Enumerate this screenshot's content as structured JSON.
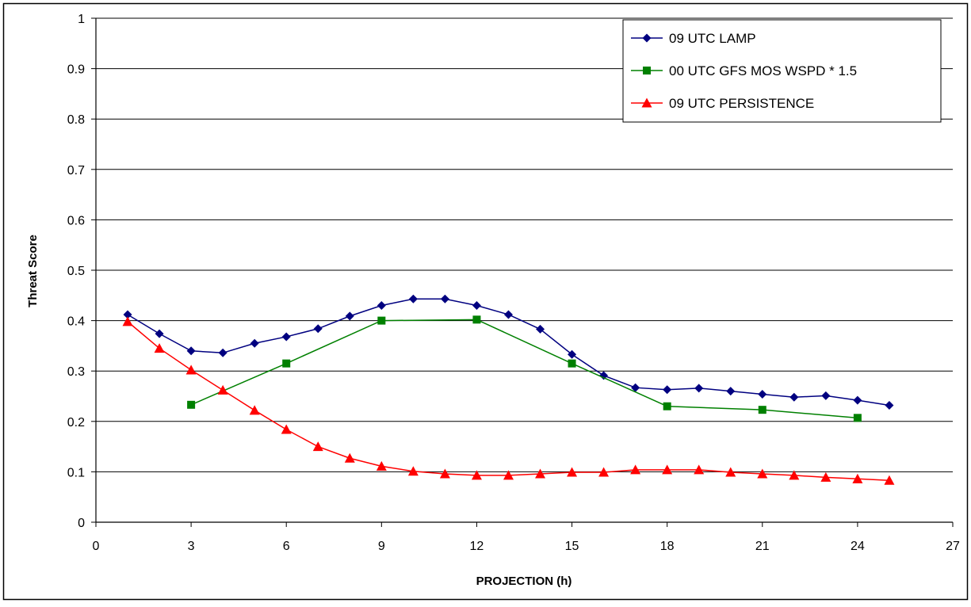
{
  "chart_data": {
    "type": "line",
    "title": "",
    "xlabel": "PROJECTION (h)",
    "ylabel": "Threat Score",
    "xlim": [
      0,
      27
    ],
    "ylim": [
      0,
      1
    ],
    "xticks": [
      0,
      3,
      6,
      9,
      12,
      15,
      18,
      21,
      24,
      27
    ],
    "yticks": [
      0,
      0.1,
      0.2,
      0.3,
      0.4,
      0.5,
      0.6,
      0.7,
      0.8,
      0.9,
      1
    ],
    "ytick_labels": [
      "0",
      "0.1",
      "0.2",
      "0.3",
      "0.4",
      "0.5",
      "0.6",
      "0.7",
      "0.8",
      "0.9",
      "1"
    ],
    "grid": "horizontal",
    "legend_position": "top-right",
    "series": [
      {
        "name": "09 UTC LAMP",
        "color": "#000080",
        "marker": "diamond",
        "x": [
          1,
          2,
          3,
          4,
          5,
          6,
          7,
          8,
          9,
          10,
          11,
          12,
          13,
          14,
          15,
          16,
          17,
          18,
          19,
          20,
          21,
          22,
          23,
          24,
          25
        ],
        "y": [
          0.412,
          0.374,
          0.34,
          0.336,
          0.355,
          0.368,
          0.384,
          0.409,
          0.43,
          0.443,
          0.443,
          0.43,
          0.412,
          0.383,
          0.333,
          0.291,
          0.267,
          0.263,
          0.266,
          0.26,
          0.254,
          0.248,
          0.251,
          0.242,
          0.232
        ]
      },
      {
        "name": "00 UTC GFS MOS WSPD * 1.5",
        "color": "#008000",
        "marker": "square",
        "x": [
          3,
          6,
          9,
          12,
          15,
          18,
          21,
          24
        ],
        "y": [
          0.233,
          0.315,
          0.4,
          0.402,
          0.315,
          0.23,
          0.223,
          0.207
        ]
      },
      {
        "name": "09 UTC PERSISTENCE",
        "color": "#ff0000",
        "marker": "triangle",
        "x": [
          1,
          2,
          3,
          4,
          5,
          6,
          7,
          8,
          9,
          10,
          11,
          12,
          13,
          14,
          15,
          16,
          17,
          18,
          19,
          20,
          21,
          22,
          23,
          24,
          25
        ],
        "y": [
          0.398,
          0.345,
          0.302,
          0.262,
          0.222,
          0.184,
          0.15,
          0.127,
          0.111,
          0.101,
          0.096,
          0.093,
          0.093,
          0.096,
          0.099,
          0.099,
          0.104,
          0.104,
          0.104,
          0.099,
          0.096,
          0.093,
          0.089,
          0.086,
          0.083
        ]
      }
    ]
  }
}
